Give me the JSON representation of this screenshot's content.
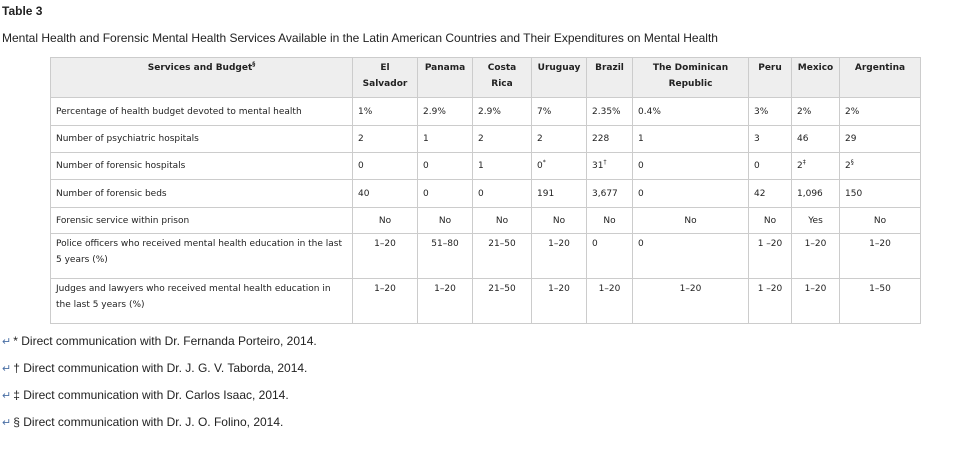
{
  "table_label": "Table 3",
  "caption": "Mental Health and Forensic Mental Health Services Available in the Latin American Countries and Their Expenditures on Mental Health",
  "headers": [
    {
      "text": "Services and Budget",
      "sup": "§"
    },
    {
      "text": "El Salvador",
      "sup": ""
    },
    {
      "text": "Panama",
      "sup": ""
    },
    {
      "text": "Costa Rica",
      "sup": ""
    },
    {
      "text": "Uruguay",
      "sup": ""
    },
    {
      "text": "Brazil",
      "sup": ""
    },
    {
      "text": "The Dominican Republic",
      "sup": ""
    },
    {
      "text": "Peru",
      "sup": ""
    },
    {
      "text": "Mexico",
      "sup": ""
    },
    {
      "text": "Argentina",
      "sup": ""
    }
  ],
  "rows": [
    {
      "label": "Percentage of health budget devoted to mental health",
      "cells": [
        {
          "v": "1%",
          "s": ""
        },
        {
          "v": "2.9%",
          "s": ""
        },
        {
          "v": "2.9%",
          "s": ""
        },
        {
          "v": "7%",
          "s": ""
        },
        {
          "v": "2.35%",
          "s": ""
        },
        {
          "v": "0.4%",
          "s": ""
        },
        {
          "v": "3%",
          "s": ""
        },
        {
          "v": "2%",
          "s": ""
        },
        {
          "v": "2%",
          "s": ""
        }
      ]
    },
    {
      "label": "Number of psychiatric hospitals",
      "cells": [
        {
          "v": "2",
          "s": ""
        },
        {
          "v": "1",
          "s": ""
        },
        {
          "v": "2",
          "s": ""
        },
        {
          "v": "2",
          "s": ""
        },
        {
          "v": "228",
          "s": ""
        },
        {
          "v": "1",
          "s": ""
        },
        {
          "v": "3",
          "s": ""
        },
        {
          "v": "46",
          "s": ""
        },
        {
          "v": "29",
          "s": ""
        }
      ]
    },
    {
      "label": "Number of forensic hospitals",
      "cells": [
        {
          "v": "0",
          "s": ""
        },
        {
          "v": "0",
          "s": ""
        },
        {
          "v": "1",
          "s": ""
        },
        {
          "v": "0",
          "s": "*"
        },
        {
          "v": "31",
          "s": "†"
        },
        {
          "v": "0",
          "s": ""
        },
        {
          "v": "0",
          "s": ""
        },
        {
          "v": "2",
          "s": "‡"
        },
        {
          "v": "2",
          "s": "§"
        }
      ]
    },
    {
      "label": "Number of forensic beds",
      "cells": [
        {
          "v": "40",
          "s": ""
        },
        {
          "v": "0",
          "s": ""
        },
        {
          "v": "0",
          "s": ""
        },
        {
          "v": "191",
          "s": ""
        },
        {
          "v": "3,677",
          "s": ""
        },
        {
          "v": "0",
          "s": ""
        },
        {
          "v": "42",
          "s": ""
        },
        {
          "v": "1,096",
          "s": ""
        },
        {
          "v": "150",
          "s": ""
        }
      ]
    },
    {
      "label": "Forensic service within prison",
      "cells": [
        {
          "v": "No",
          "s": ""
        },
        {
          "v": "No",
          "s": ""
        },
        {
          "v": "No",
          "s": ""
        },
        {
          "v": "No",
          "s": ""
        },
        {
          "v": "No",
          "s": ""
        },
        {
          "v": "No",
          "s": ""
        },
        {
          "v": "No",
          "s": ""
        },
        {
          "v": "Yes",
          "s": ""
        },
        {
          "v": "No",
          "s": ""
        }
      ]
    },
    {
      "label": "Police officers who received mental health education in the last 5 years (%)",
      "cells": [
        {
          "v": "1–20",
          "s": ""
        },
        {
          "v": "51–80",
          "s": ""
        },
        {
          "v": "21–50",
          "s": ""
        },
        {
          "v": "1–20",
          "s": ""
        },
        {
          "v": "0",
          "s": ""
        },
        {
          "v": "0",
          "s": ""
        },
        {
          "v": "1 –20",
          "s": ""
        },
        {
          "v": "1–20",
          "s": ""
        },
        {
          "v": "1–20",
          "s": ""
        }
      ]
    },
    {
      "label": "Judges and lawyers who received mental health education in the last 5 years (%)",
      "cells": [
        {
          "v": "1–20",
          "s": ""
        },
        {
          "v": "1–20",
          "s": ""
        },
        {
          "v": "21–50",
          "s": ""
        },
        {
          "v": "1–20",
          "s": ""
        },
        {
          "v": "1–20",
          "s": ""
        },
        {
          "v": "1–20",
          "s": ""
        },
        {
          "v": "1 –20",
          "s": ""
        },
        {
          "v": "1–20",
          "s": ""
        },
        {
          "v": "1–50",
          "s": ""
        }
      ]
    }
  ],
  "footnotes": [
    {
      "marker": "*",
      "text": "Direct communication with Dr. Fernanda Porteiro, 2014."
    },
    {
      "marker": "†",
      "text": "Direct communication with Dr. J. G. V. Taborda, 2014."
    },
    {
      "marker": "‡",
      "text": "Direct communication with Dr. Carlos Isaac, 2014."
    },
    {
      "marker": "§",
      "text": "Direct communication with Dr. J. O. Folino, 2014."
    }
  ]
}
